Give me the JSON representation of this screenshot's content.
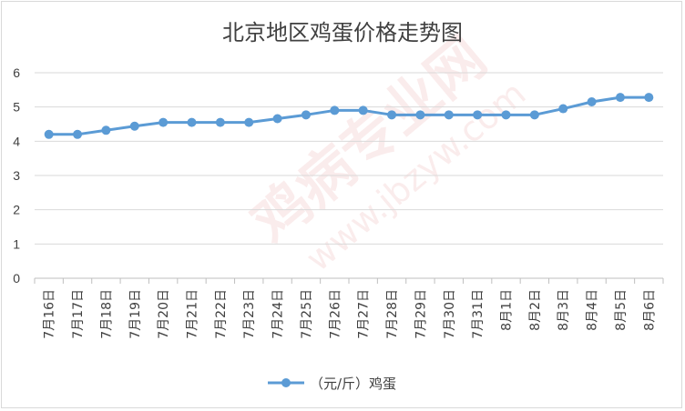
{
  "chart_data": {
    "type": "line",
    "title": "北京地区鸡蛋价格走势图",
    "categories": [
      "7月16日",
      "7月17日",
      "7月18日",
      "7月19日",
      "7月20日",
      "7月21日",
      "7月22日",
      "7月23日",
      "7月24日",
      "7月25日",
      "7月26日",
      "7月27日",
      "7月28日",
      "7月29日",
      "7月30日",
      "7月31日",
      "8月1日",
      "8月2日",
      "8月3日",
      "8月4日",
      "8月5日",
      "8月6日"
    ],
    "series": [
      {
        "name": "（元/斤）鸡蛋",
        "values": [
          4.2,
          4.2,
          4.32,
          4.44,
          4.55,
          4.55,
          4.55,
          4.55,
          4.66,
          4.77,
          4.9,
          4.9,
          4.77,
          4.77,
          4.77,
          4.77,
          4.77,
          4.77,
          4.95,
          5.15,
          5.28,
          5.28
        ]
      }
    ],
    "ylim": [
      0,
      6
    ],
    "yticks": [
      "0",
      "1",
      "2",
      "3",
      "4",
      "5",
      "6"
    ],
    "grid": true,
    "legend_position": "bottom",
    "line_color": "#5b9bd5"
  },
  "watermark": {
    "brand": "鸡病专业网",
    "url": "www.jbzyw.com"
  }
}
